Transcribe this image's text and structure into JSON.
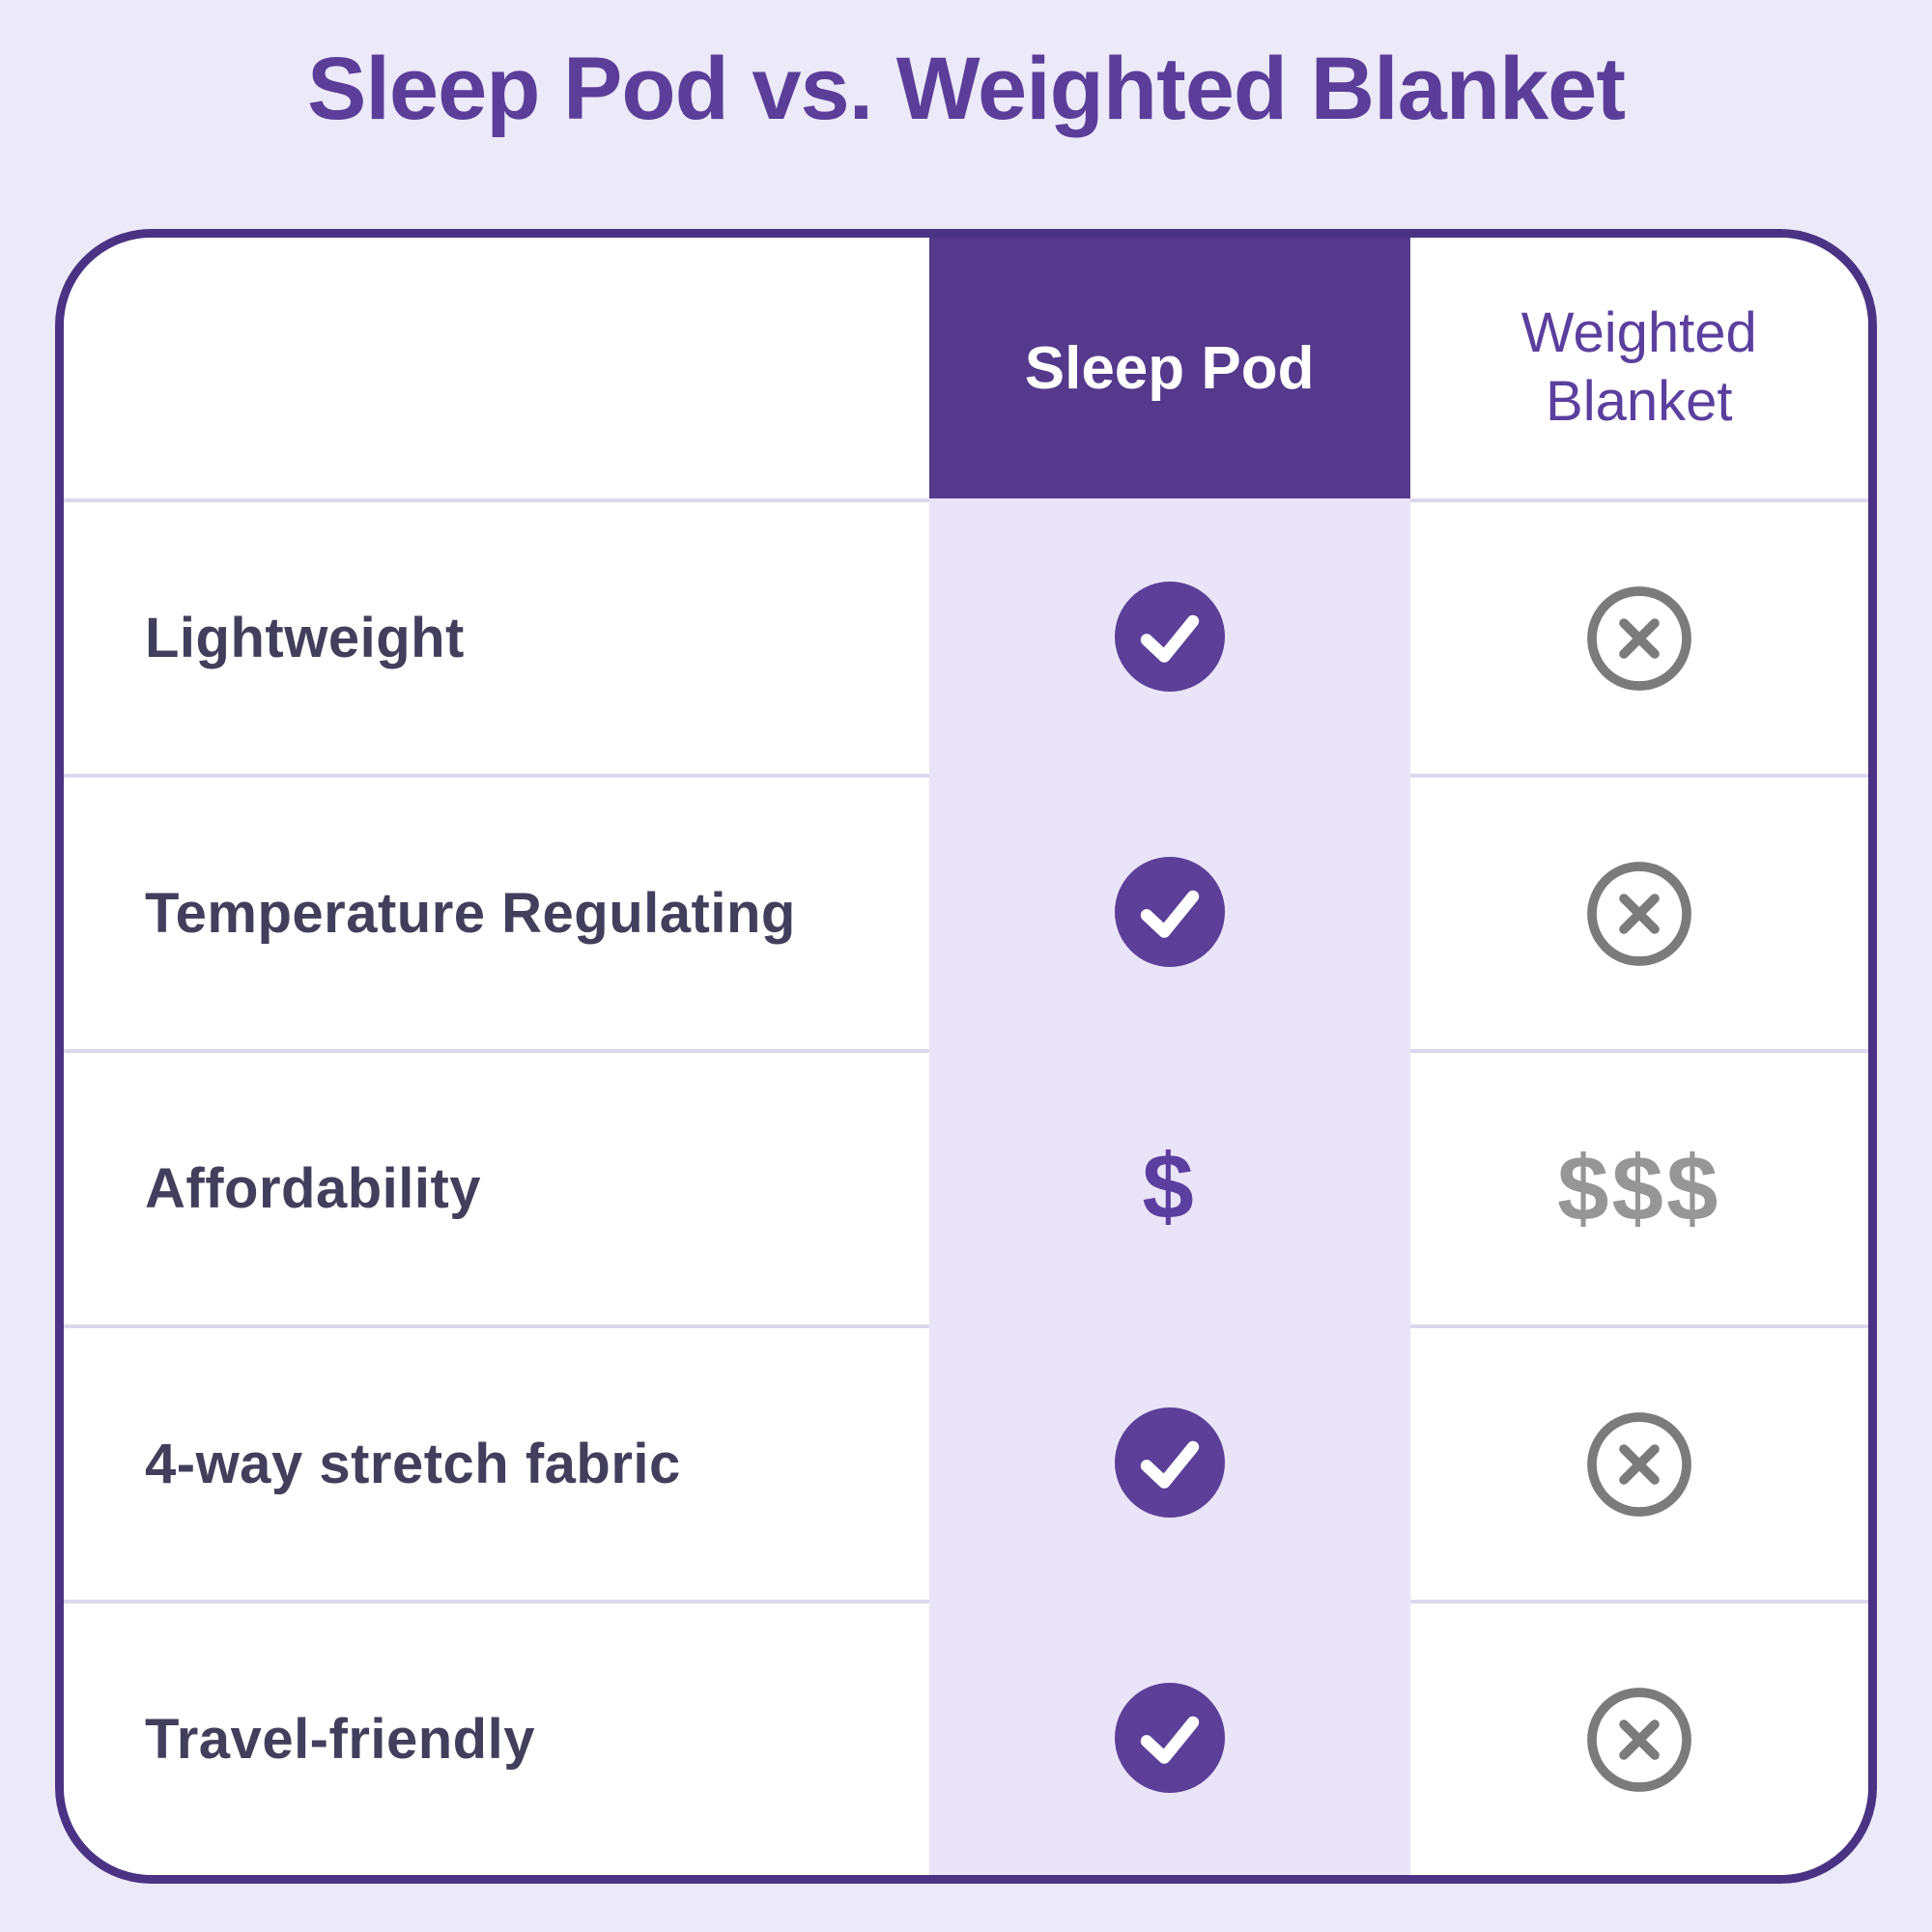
{
  "title": "Sleep Pod vs. Weighted Blanket",
  "table": {
    "header": {
      "feature_label": "",
      "col_sleep_pod": "Sleep Pod",
      "col_weighted_blanket": "Weighted Blanket"
    },
    "rows": [
      {
        "feature": "Lightweight",
        "sleep_pod": "check",
        "weighted_blanket": "cross"
      },
      {
        "feature": "Temperature Regulating",
        "sleep_pod": "check",
        "weighted_blanket": "cross"
      },
      {
        "feature": "Affordability",
        "sleep_pod": "$",
        "weighted_blanket": "$$$"
      },
      {
        "feature": "4-way stretch fabric",
        "sleep_pod": "check",
        "weighted_blanket": "cross"
      },
      {
        "feature": "Travel-friendly",
        "sleep_pod": "check",
        "weighted_blanket": "cross"
      }
    ],
    "icons": {
      "check": "check-circle-icon",
      "cross": "x-circle-icon"
    },
    "colors": {
      "page_bg": "#ECE9F9",
      "title_text": "#5A3E99",
      "table_border": "#4A3384",
      "header_cell_bg": "#54398C",
      "header_cell_text": "#FFFFFF",
      "weighted_header_text": "#5B3F9E",
      "sleep_pod_column_bg": "#EAE4F8",
      "cell_bg": "#FFFFFF",
      "feature_text": "#413F5C",
      "row_divider": "#DDD7EF",
      "check_fill": "#5B3F99",
      "check_mark": "#FFFFFF",
      "cross_gray": "#7B7B7B",
      "dollar_purple": "#5B3FA0",
      "dollar_gray": "#969696"
    }
  },
  "chart_data": {
    "type": "table",
    "title": "Sleep Pod vs. Weighted Blanket",
    "columns": [
      "",
      "Sleep Pod",
      "Weighted Blanket"
    ],
    "rows": [
      [
        "Lightweight",
        "yes",
        "no"
      ],
      [
        "Temperature Regulating",
        "yes",
        "no"
      ],
      [
        "Affordability",
        "$",
        "$$$"
      ],
      [
        "4-way stretch fabric",
        "yes",
        "no"
      ],
      [
        "Travel-friendly",
        "yes",
        "no"
      ]
    ],
    "legend_position": "none",
    "grid": false
  }
}
